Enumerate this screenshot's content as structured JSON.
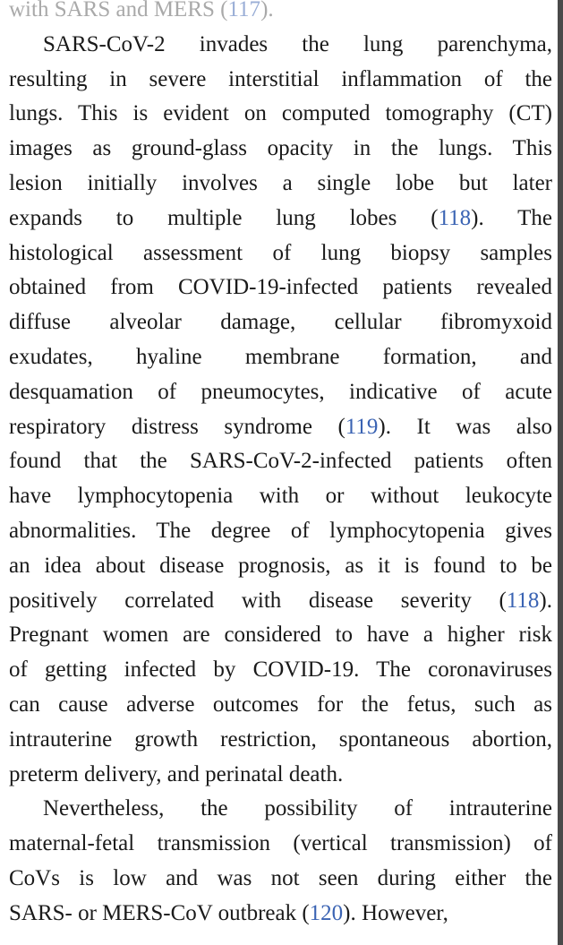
{
  "paragraphs": [
    {
      "id": "p0",
      "lines": [
        [
          "with SARS and MERS (",
          {
            "ref": "117"
          },
          ")."
        ]
      ]
    },
    {
      "id": "p1",
      "lines": [
        [
          "SARS-CoV-2 invades the lung parenchyma,"
        ],
        [
          "resulting in severe interstitial inflammation of the"
        ],
        [
          "lungs. This is evident on computed tomography (CT)"
        ],
        [
          "images as ground-glass opacity in the lungs. This"
        ],
        [
          "lesion initially involves a single lobe but later"
        ],
        [
          "expands to multiple lung lobes (",
          {
            "ref": "118"
          },
          "). The"
        ],
        [
          "histological assessment of lung biopsy samples"
        ],
        [
          "obtained from COVID-19-infected patients revealed"
        ],
        [
          "diffuse alveolar damage, cellular fibromyxoid"
        ],
        [
          "exudates, hyaline membrane formation, and"
        ],
        [
          "desquamation of pneumocytes, indicative of acute"
        ],
        [
          "respiratory distress syndrome (",
          {
            "ref": "119"
          },
          "). It was also"
        ],
        [
          "found that the SARS-CoV-2-infected patients often"
        ],
        [
          "have lymphocytopenia with or without leukocyte"
        ],
        [
          "abnormalities. The degree of lymphocytopenia gives"
        ],
        [
          "an idea about disease prognosis, as it is found to be"
        ],
        [
          "positively correlated with disease severity (",
          {
            "ref": "118"
          },
          ")."
        ],
        [
          "Pregnant women are considered to have a higher risk"
        ],
        [
          "of getting infected by COVID-19. The coronaviruses"
        ],
        [
          "can cause adverse outcomes for the fetus, such as"
        ],
        [
          "intrauterine growth restriction, spontaneous abortion,"
        ],
        [
          "preterm delivery, and perinatal death."
        ]
      ]
    },
    {
      "id": "p2",
      "lines": [
        [
          "Nevertheless, the possibility of intrauterine"
        ],
        [
          "maternal-fetal transmission (vertical transmission) of"
        ],
        [
          "CoVs is low and was not seen during either the"
        ],
        [
          "SARS- or MERS-CoV outbreak (",
          {
            "ref": "120"
          },
          "). However,"
        ]
      ]
    }
  ]
}
